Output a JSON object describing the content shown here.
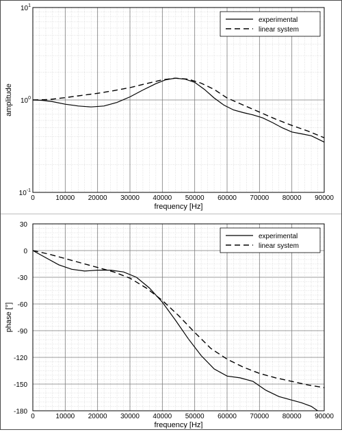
{
  "chart_data": [
    {
      "type": "line",
      "xlabel": "frequency [Hz]",
      "ylabel": "amplitude",
      "xlim": [
        0,
        90000
      ],
      "ylim": [
        0.1,
        10
      ],
      "yscale": "log",
      "grid": true,
      "legend_position": "top-right",
      "x_ticks": [
        "0",
        "10000",
        "20000",
        "30000",
        "40000",
        "50000",
        "60000",
        "70000",
        "80000",
        "90000"
      ],
      "y_ticks": [
        {
          "value": 10,
          "base": "10",
          "exp": "1"
        },
        {
          "value": 1,
          "base": "10",
          "exp": "0"
        },
        {
          "value": 0.1,
          "base": "10",
          "exp": "-1"
        }
      ],
      "series": [
        {
          "name": "experimental",
          "style": "solid",
          "x": [
            0,
            3000,
            6000,
            10000,
            14000,
            18000,
            22000,
            26000,
            30000,
            34000,
            38000,
            41000,
            44000,
            47000,
            50000,
            53000,
            56000,
            59000,
            62000,
            65000,
            68000,
            71000,
            74000,
            77000,
            80000,
            83000,
            86000,
            90000
          ],
          "y": [
            1.0,
            0.99,
            0.96,
            0.9,
            0.86,
            0.84,
            0.86,
            0.94,
            1.08,
            1.28,
            1.5,
            1.65,
            1.72,
            1.68,
            1.55,
            1.3,
            1.05,
            0.88,
            0.78,
            0.73,
            0.69,
            0.64,
            0.57,
            0.5,
            0.45,
            0.43,
            0.41,
            0.35
          ]
        },
        {
          "name": "linear system",
          "style": "dashed",
          "x": [
            0,
            5000,
            10000,
            15000,
            20000,
            25000,
            30000,
            35000,
            40000,
            44000,
            48000,
            52000,
            56000,
            60000,
            65000,
            70000,
            75000,
            80000,
            85000,
            90000
          ],
          "y": [
            1.0,
            1.01,
            1.06,
            1.12,
            1.18,
            1.26,
            1.36,
            1.5,
            1.65,
            1.72,
            1.68,
            1.52,
            1.3,
            1.05,
            0.88,
            0.74,
            0.62,
            0.53,
            0.46,
            0.39
          ]
        }
      ]
    },
    {
      "type": "line",
      "xlabel": "frequency [Hz]",
      "ylabel": "phase [°]",
      "xlim": [
        0,
        90000
      ],
      "ylim": [
        -180,
        30
      ],
      "grid": true,
      "legend_position": "top-right",
      "x_ticks": [
        "0",
        "10000",
        "20000",
        "30000",
        "40000",
        "50000",
        "60000",
        "70000",
        "80000",
        "90000"
      ],
      "y_ticks": [
        "30",
        "0",
        "-30",
        "-60",
        "-90",
        "-120",
        "-150",
        "-180"
      ],
      "series": [
        {
          "name": "experimental",
          "style": "solid",
          "x": [
            0,
            4000,
            8000,
            12000,
            16000,
            20000,
            24000,
            28000,
            32000,
            36000,
            40000,
            44000,
            48000,
            52000,
            56000,
            60000,
            64000,
            68000,
            72000,
            76000,
            80000,
            83000,
            86000,
            88000,
            90000
          ],
          "y": [
            0,
            -8,
            -16,
            -21,
            -23,
            -22,
            -22,
            -24,
            -30,
            -42,
            -58,
            -78,
            -99,
            -118,
            -133,
            -141,
            -143,
            -147,
            -157,
            -164,
            -168,
            -171,
            -175,
            -180,
            -185
          ]
        },
        {
          "name": "linear system",
          "style": "dashed",
          "x": [
            0,
            5000,
            10000,
            15000,
            20000,
            25000,
            30000,
            35000,
            40000,
            45000,
            50000,
            55000,
            60000,
            65000,
            70000,
            75000,
            80000,
            85000,
            90000
          ],
          "y": [
            0,
            -4,
            -9,
            -14,
            -19,
            -24,
            -31,
            -42,
            -56,
            -73,
            -92,
            -110,
            -122,
            -131,
            -138,
            -143,
            -147,
            -151,
            -154
          ]
        }
      ]
    }
  ]
}
